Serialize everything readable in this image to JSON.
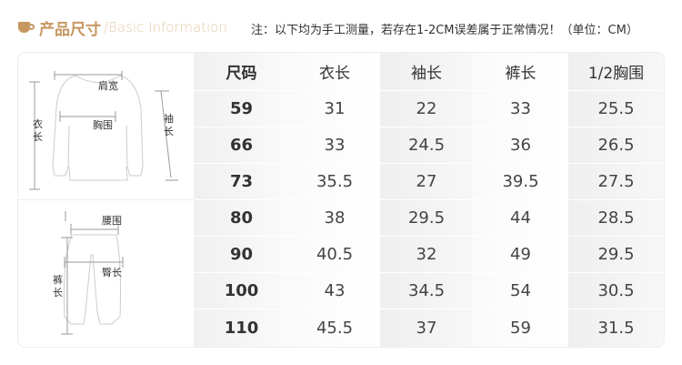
{
  "header": {
    "icon": "coffee-cup-icon",
    "title": "产品尺寸",
    "subtitle": "/Basic Information",
    "note": "注：以下均为手工测量，若存在1-2CM误差属于正常情况！（单位：CM）"
  },
  "diagram": {
    "top": {
      "shoulder": "肩宽",
      "chest": "胸围",
      "length_a": "衣",
      "length_b": "长",
      "sleeve_a": "袖",
      "sleeve_b": "长"
    },
    "bottom": {
      "waist": "腰围",
      "hip": "臀长",
      "pants_a": "裤",
      "pants_b": "长"
    }
  },
  "table": {
    "headers": [
      "尺码",
      "衣长",
      "袖长",
      "裤长",
      "1/2胸围"
    ],
    "rows": [
      [
        "59",
        "31",
        "22",
        "33",
        "25.5"
      ],
      [
        "66",
        "33",
        "24.5",
        "36",
        "26.5"
      ],
      [
        "73",
        "35.5",
        "27",
        "39.5",
        "27.5"
      ],
      [
        "80",
        "38",
        "29.5",
        "44",
        "28.5"
      ],
      [
        "90",
        "40.5",
        "32",
        "49",
        "29.5"
      ],
      [
        "100",
        "43",
        "34.5",
        "54",
        "30.5"
      ],
      [
        "110",
        "45.5",
        "37",
        "59",
        "31.5"
      ]
    ]
  },
  "colors": {
    "brand": "#c69760",
    "subtitle": "#e2cba9"
  }
}
